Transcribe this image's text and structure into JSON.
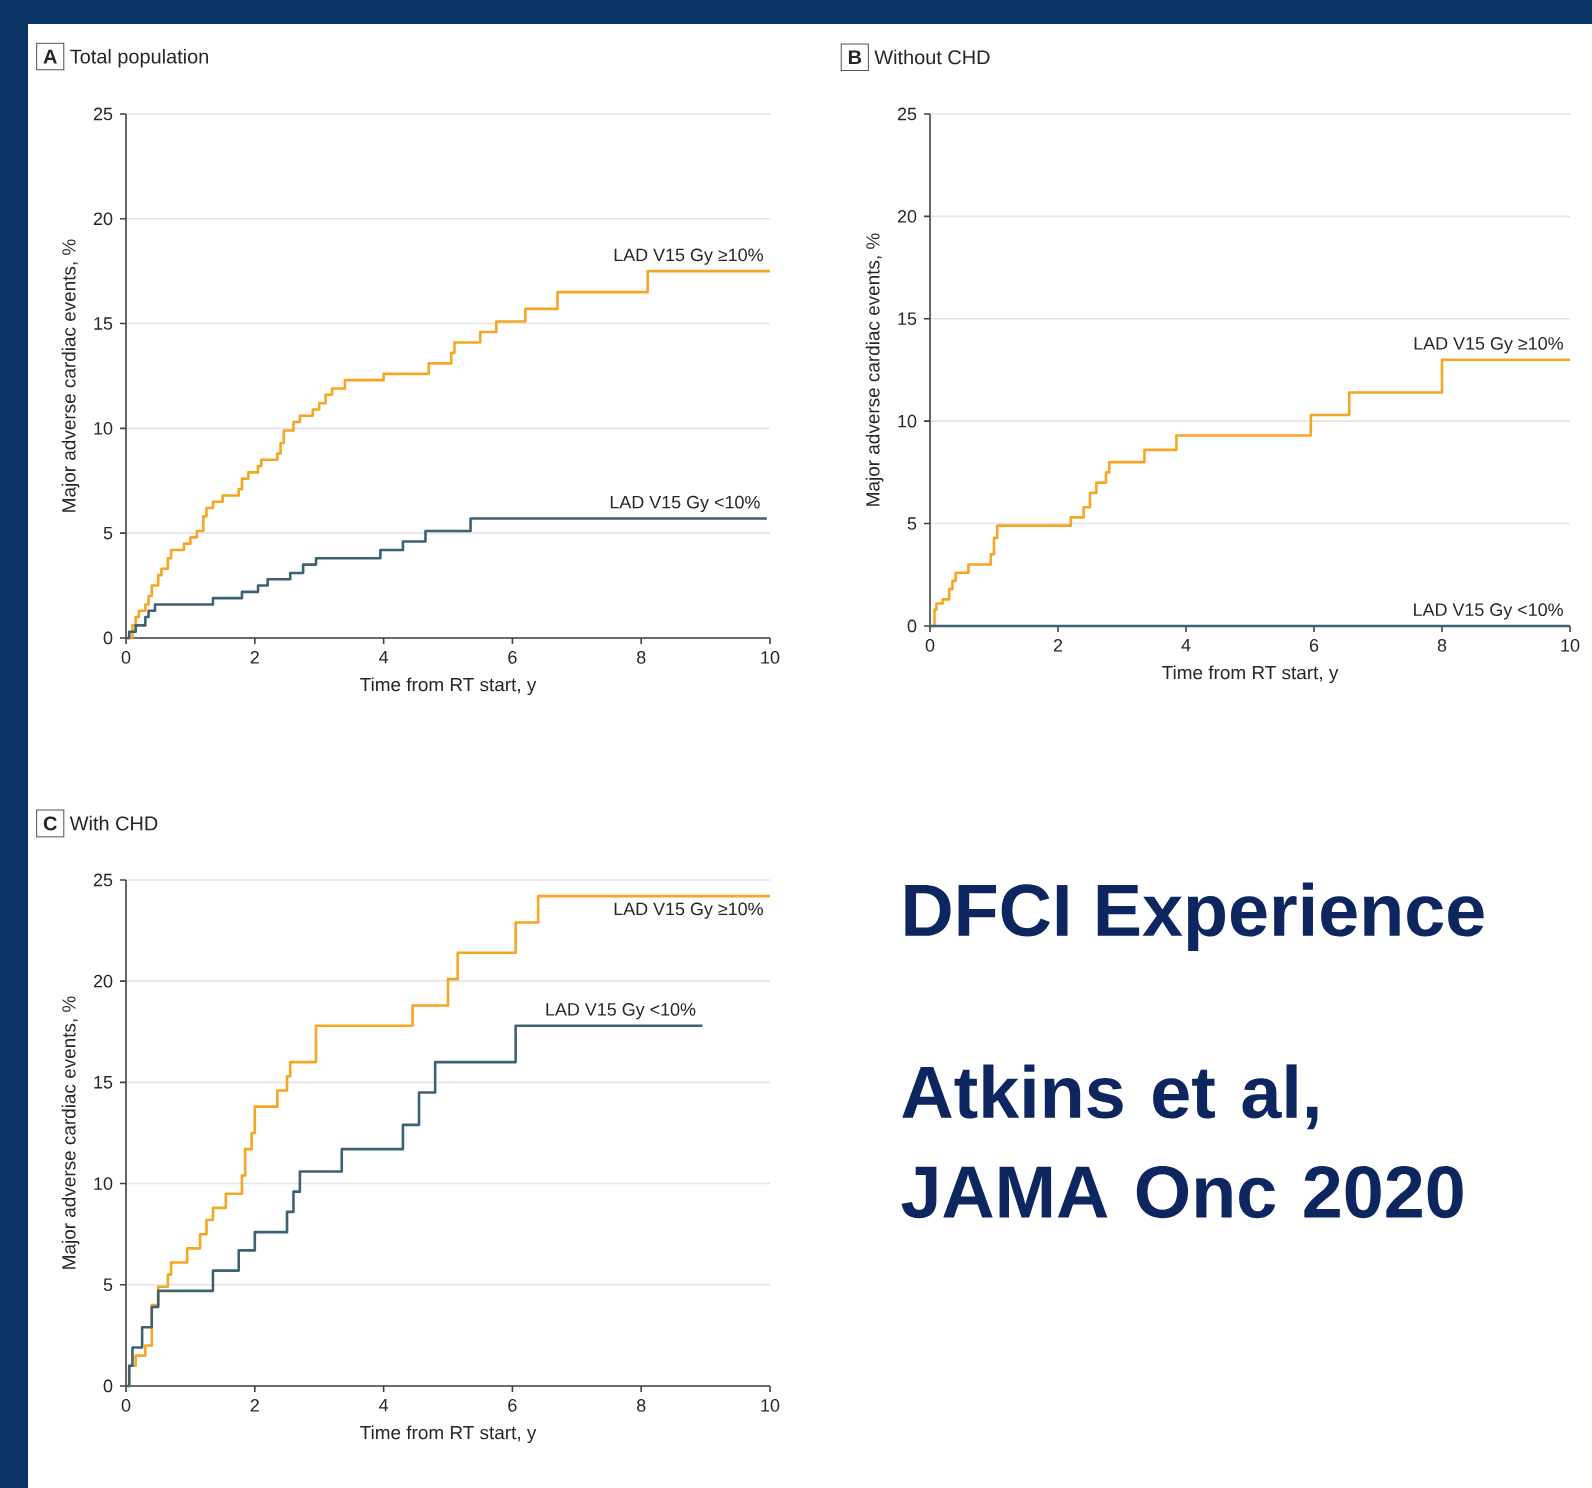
{
  "chart_data": [
    {
      "type": "step",
      "title": "Total population",
      "annotations": [
        "A"
      ],
      "xlabel": "Time from RT start, y",
      "ylabel": "Major adverse cardiac events, %",
      "xlim": [
        0,
        10
      ],
      "ylim": [
        0,
        25
      ],
      "xticks": [
        0,
        2,
        4,
        6,
        8,
        10
      ],
      "yticks": [
        0,
        5,
        10,
        15,
        20,
        25
      ],
      "grid": "y",
      "series": [
        {
          "name": "LAD V15 Gy ≥10%",
          "color": "#f5a623",
          "x": [
            0,
            0.1,
            0.15,
            0.2,
            0.3,
            0.35,
            0.4,
            0.5,
            0.55,
            0.65,
            0.7,
            0.9,
            1.0,
            1.1,
            1.2,
            1.25,
            1.35,
            1.5,
            1.75,
            1.8,
            1.9,
            2.05,
            2.1,
            2.35,
            2.4,
            2.45,
            2.6,
            2.7,
            2.9,
            3.0,
            3.1,
            3.2,
            3.4,
            4.0,
            4.7,
            5.05,
            5.1,
            5.5,
            5.75,
            6.2,
            6.7,
            8.1,
            10
          ],
          "values": [
            0,
            0.6,
            1.0,
            1.3,
            1.6,
            2.0,
            2.5,
            3.0,
            3.3,
            3.8,
            4.2,
            4.5,
            4.8,
            5.1,
            5.8,
            6.2,
            6.5,
            6.8,
            7.1,
            7.6,
            7.9,
            8.2,
            8.5,
            8.8,
            9.3,
            9.9,
            10.3,
            10.6,
            10.9,
            11.2,
            11.6,
            11.9,
            12.3,
            12.6,
            13.1,
            13.6,
            14.1,
            14.6,
            15.1,
            15.7,
            16.5,
            17.5,
            17.5
          ]
        },
        {
          "name": "LAD V15 Gy <10%",
          "color": "#3d6273",
          "x": [
            0,
            0.05,
            0.15,
            0.3,
            0.35,
            0.45,
            1.35,
            1.8,
            2.05,
            2.2,
            2.55,
            2.75,
            2.95,
            3.95,
            4.3,
            4.65,
            5.35,
            9.95
          ],
          "values": [
            0,
            0.3,
            0.6,
            1.0,
            1.3,
            1.6,
            1.9,
            2.2,
            2.5,
            2.8,
            3.1,
            3.5,
            3.8,
            4.2,
            4.6,
            5.1,
            5.7,
            5.7
          ]
        }
      ]
    },
    {
      "type": "step",
      "title": "Without CHD",
      "annotations": [
        "B"
      ],
      "xlabel": "Time from RT start, y",
      "ylabel": "Major adverse cardiac events, %",
      "xlim": [
        0,
        10
      ],
      "ylim": [
        0,
        25
      ],
      "xticks": [
        0,
        2,
        4,
        6,
        8,
        10
      ],
      "yticks": [
        0,
        5,
        10,
        15,
        20,
        25
      ],
      "grid": "y",
      "series": [
        {
          "name": "LAD V15 Gy ≥10%",
          "color": "#f5a623",
          "x": [
            0,
            0.07,
            0.1,
            0.2,
            0.3,
            0.35,
            0.4,
            0.6,
            0.95,
            1.0,
            1.05,
            2.2,
            2.4,
            2.5,
            2.6,
            2.75,
            2.8,
            3.35,
            3.85,
            5.95,
            6.55,
            8.0,
            10
          ],
          "values": [
            0,
            0.8,
            1.1,
            1.3,
            1.8,
            2.2,
            2.6,
            3.0,
            3.5,
            4.3,
            4.9,
            5.3,
            5.8,
            6.5,
            7.0,
            7.5,
            8.0,
            8.6,
            9.3,
            10.3,
            11.4,
            13.0,
            13.0
          ]
        },
        {
          "name": "LAD V15 Gy <10%",
          "color": "#3d6273",
          "x": [
            0,
            10
          ],
          "values": [
            0,
            0
          ]
        }
      ]
    },
    {
      "type": "step",
      "title": "With CHD",
      "annotations": [
        "C"
      ],
      "xlabel": "Time from RT start, y",
      "ylabel": "Major adverse cardiac events, %",
      "xlim": [
        0,
        10
      ],
      "ylim": [
        0,
        25
      ],
      "xticks": [
        0,
        2,
        4,
        6,
        8,
        10
      ],
      "yticks": [
        0,
        5,
        10,
        15,
        20,
        25
      ],
      "grid": "y",
      "series": [
        {
          "name": "LAD V15 Gy ≥10%",
          "color": "#f5a623",
          "x": [
            0,
            0.05,
            0.15,
            0.3,
            0.4,
            0.5,
            0.65,
            0.7,
            0.95,
            1.15,
            1.25,
            1.35,
            1.55,
            1.8,
            1.85,
            1.95,
            2.0,
            2.35,
            2.5,
            2.55,
            2.95,
            4.45,
            5.0,
            5.15,
            6.05,
            6.4,
            10
          ],
          "values": [
            0,
            1.0,
            1.5,
            2.0,
            4.0,
            4.9,
            5.5,
            6.1,
            6.8,
            7.5,
            8.2,
            8.8,
            9.5,
            10.4,
            11.7,
            12.5,
            13.8,
            14.6,
            15.3,
            16.0,
            17.8,
            18.8,
            20.1,
            21.4,
            22.9,
            24.2,
            24.2
          ]
        },
        {
          "name": "LAD V15 Gy <10%",
          "color": "#3d6273",
          "x": [
            0,
            0.05,
            0.1,
            0.25,
            0.4,
            0.5,
            1.35,
            1.75,
            2.0,
            2.5,
            2.6,
            2.7,
            3.35,
            4.3,
            4.55,
            4.8,
            6.05,
            8.95
          ],
          "values": [
            0,
            1.0,
            1.9,
            2.9,
            3.9,
            4.7,
            5.7,
            6.7,
            7.6,
            8.6,
            9.6,
            10.6,
            11.7,
            12.9,
            14.5,
            16.0,
            17.8,
            17.8
          ]
        }
      ]
    },
    {
      "type": "other",
      "title": "DFCI Experience",
      "annotations": [
        "Atkins et al, JAMA Onc 2020"
      ]
    }
  ]
}
